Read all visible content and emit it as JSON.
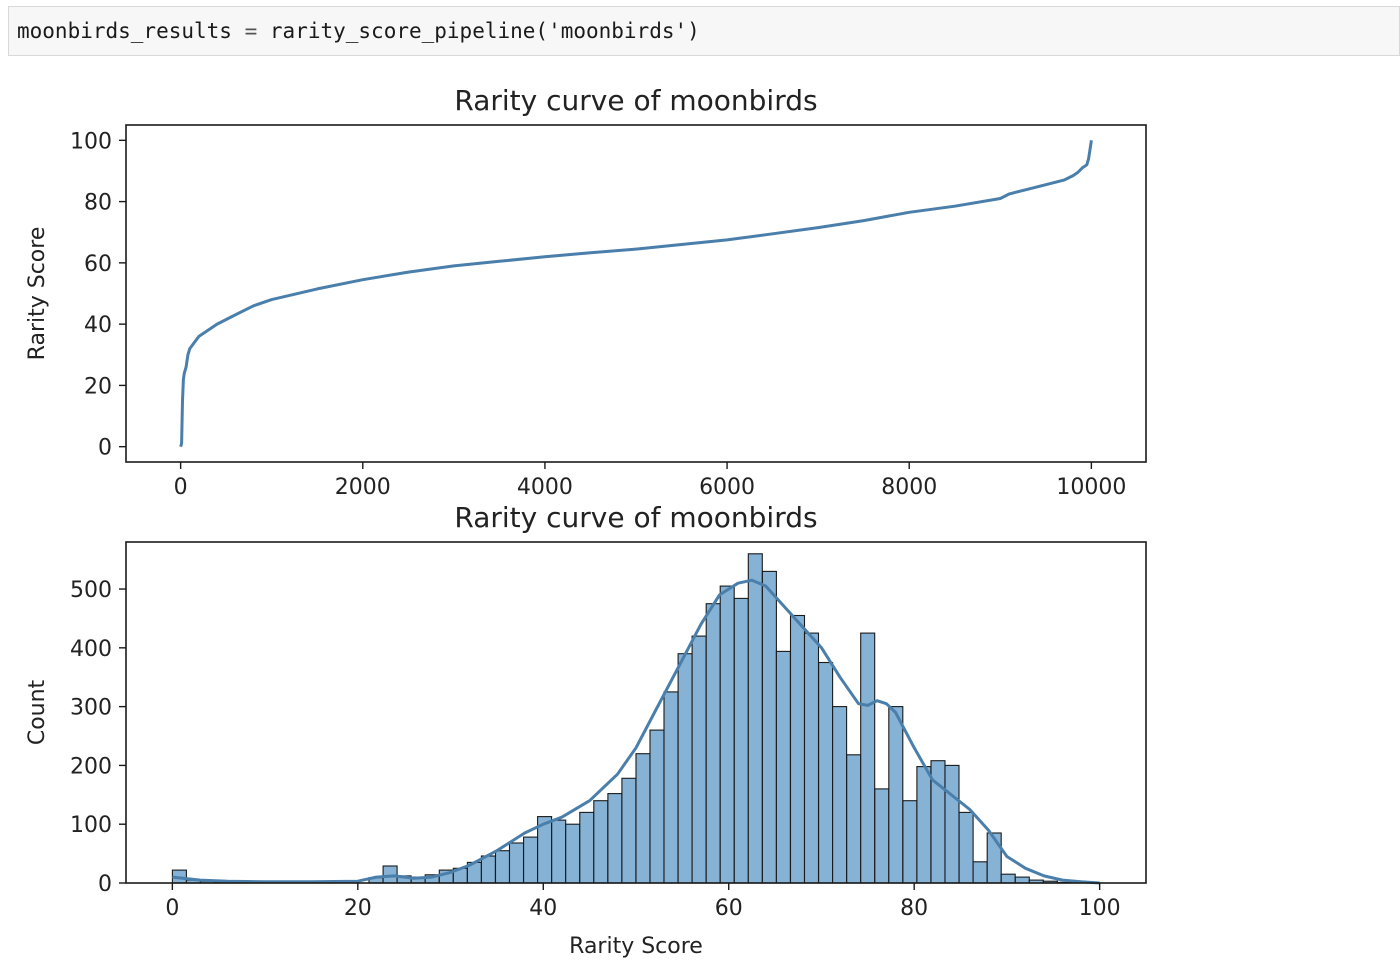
{
  "code_cell": {
    "var_name": "moonbirds_results",
    "operator": "=",
    "func_name": "rarity_score_pipeline",
    "paren_open": "(",
    "arg": "'moonbirds'",
    "paren_close": ")"
  },
  "colors": {
    "line": "#4a7fab",
    "bar_fill": "#7eaed3",
    "bar_edge": "#1a1a1a",
    "kde": "#4a7fab",
    "axes": "#1a1a1a"
  },
  "chart_data": [
    {
      "type": "line",
      "title": "Rarity curve of moonbirds",
      "xlabel": "",
      "ylabel": "Rarity Score",
      "xlim": [
        -600,
        10600
      ],
      "ylim": [
        -5,
        105
      ],
      "xticks": [
        0,
        2000,
        4000,
        6000,
        8000,
        10000
      ],
      "yticks": [
        0,
        20,
        40,
        60,
        80,
        100
      ],
      "grid": false,
      "series": [
        {
          "x": [
            0,
            10,
            20,
            30,
            40,
            60,
            80,
            100,
            150,
            200,
            300,
            400,
            600,
            800,
            1000,
            1500,
            2000,
            2500,
            3000,
            3500,
            4000,
            4500,
            5000,
            5500,
            6000,
            6500,
            7000,
            7500,
            8000,
            8500,
            9000,
            9100,
            9300,
            9500,
            9700,
            9800,
            9850,
            9900,
            9950,
            9970,
            9985,
            10000
          ],
          "y": [
            0,
            1,
            15,
            22,
            24,
            26,
            30,
            32,
            34,
            36,
            38,
            40,
            43,
            46,
            48,
            51.5,
            54.5,
            57,
            59,
            60.5,
            62,
            63.3,
            64.5,
            66,
            67.5,
            69.5,
            71.5,
            73.8,
            76.5,
            78.5,
            81,
            82.5,
            84,
            85.5,
            87,
            88.5,
            89.5,
            91,
            92,
            94,
            97,
            100
          ]
        }
      ]
    },
    {
      "type": "bar",
      "title": "Rarity curve of moonbirds",
      "xlabel": "Rarity Score",
      "ylabel": "Count",
      "xlim": [
        -5,
        105
      ],
      "ylim": [
        0,
        580
      ],
      "xticks": [
        0,
        20,
        40,
        60,
        80,
        100
      ],
      "yticks": [
        0,
        100,
        200,
        300,
        400,
        500
      ],
      "bin_width": 1.515,
      "bin_edges_start": 0,
      "values": [
        22,
        5,
        3,
        2,
        1,
        0,
        0,
        0,
        0,
        0,
        0,
        0,
        0,
        0,
        9,
        29,
        12,
        10,
        14,
        22,
        25,
        35,
        46,
        55,
        68,
        78,
        113,
        107,
        100,
        120,
        140,
        152,
        178,
        220,
        260,
        325,
        390,
        420,
        475,
        505,
        484,
        560,
        530,
        394,
        455,
        425,
        375,
        300,
        218,
        425,
        160,
        300,
        140,
        198,
        208,
        200,
        120,
        36,
        85,
        15,
        10,
        5,
        3,
        1,
        0,
        0
      ],
      "kde": {
        "x": [
          0,
          3,
          6,
          10,
          15,
          20,
          22,
          24,
          26,
          28,
          30,
          32,
          35,
          38,
          40,
          42,
          45,
          48,
          50,
          52,
          55,
          57,
          59,
          61,
          62.5,
          64,
          66,
          68,
          70,
          72,
          74,
          75,
          76,
          77,
          78,
          80,
          82,
          84,
          86,
          88,
          90,
          92,
          94,
          96,
          98,
          100
        ],
        "y": [
          10,
          5,
          3,
          2,
          2,
          3,
          10,
          12,
          8,
          10,
          18,
          30,
          55,
          85,
          100,
          112,
          140,
          185,
          230,
          290,
          380,
          440,
          490,
          510,
          515,
          505,
          470,
          435,
          400,
          350,
          305,
          302,
          310,
          305,
          290,
          230,
          175,
          150,
          125,
          90,
          45,
          25,
          12,
          5,
          2,
          0
        ]
      }
    }
  ]
}
